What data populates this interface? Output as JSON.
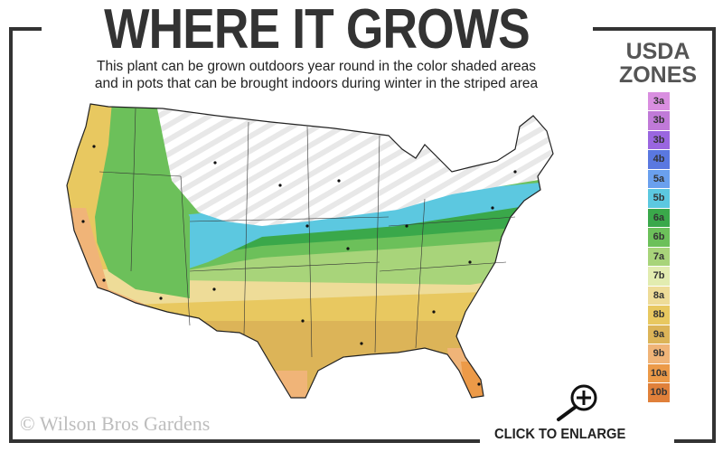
{
  "header": {
    "title": "WHERE IT GROWS",
    "subtitle_line1": "This plant can be grown outdoors year round in the color shaded areas",
    "subtitle_line2": "and in pots that can be brought indoors during winter in the striped area"
  },
  "legend": {
    "title_line1": "USDA",
    "title_line2": "ZONES",
    "zones": [
      {
        "label": "3a",
        "color": "#d98ee0"
      },
      {
        "label": "3b",
        "color": "#c07ad8"
      },
      {
        "label": "3b",
        "color": "#9a66e0"
      },
      {
        "label": "4b",
        "color": "#5a78e0"
      },
      {
        "label": "5a",
        "color": "#6aa0ee"
      },
      {
        "label": "5b",
        "color": "#5cc8e0"
      },
      {
        "label": "6a",
        "color": "#3aa84a"
      },
      {
        "label": "6b",
        "color": "#6cc05a"
      },
      {
        "label": "7a",
        "color": "#a8d47a"
      },
      {
        "label": "7b",
        "color": "#e2ecb0"
      },
      {
        "label": "8a",
        "color": "#eedc98"
      },
      {
        "label": "8b",
        "color": "#e8c860"
      },
      {
        "label": "9a",
        "color": "#dcb458"
      },
      {
        "label": "9b",
        "color": "#f0b478"
      },
      {
        "label": "10a",
        "color": "#ec9a48"
      },
      {
        "label": "10b",
        "color": "#e0803a"
      }
    ]
  },
  "footer": {
    "copyright": "© Wilson Bros Gardens",
    "enlarge_label": "CLICK TO ENLARGE",
    "enlarge_icon": "zoom-in-icon"
  }
}
